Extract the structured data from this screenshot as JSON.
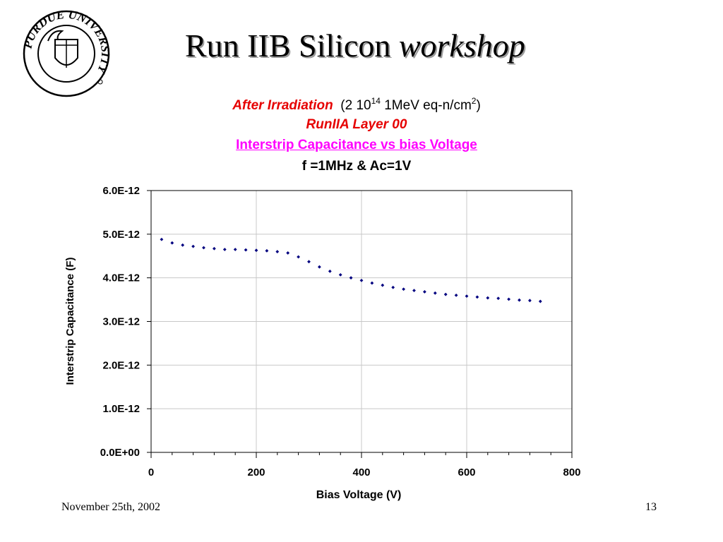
{
  "slide": {
    "title_main": "Run IIB Silicon",
    "title_italic": "workshop",
    "logo_text": "PURDUE UNIVERSITY",
    "footer_date": "November 25th, 2002",
    "page_number": "13"
  },
  "chart_data": {
    "type": "scatter",
    "header": {
      "line1_italic": "After Irradiation",
      "line1_prefix": "(2 10",
      "line1_exp": "14",
      "line1_mid": " 1MeV eq-n/cm",
      "line1_exp2": "2",
      "line1_suffix": ")",
      "line2": "RunIIA Layer 00",
      "line3": "Interstrip Capacitance vs bias Voltage ",
      "line4": "f =1MHz  & Ac=1V"
    },
    "xlabel": "Bias Voltage (V)",
    "ylabel": "Interstrip Capacitance (F)",
    "xlim": [
      0,
      800
    ],
    "ylim": [
      0,
      6e-12
    ],
    "x_ticks": [
      0,
      200,
      400,
      600,
      800
    ],
    "x_tick_labels": [
      "0",
      "200",
      "400",
      "600",
      "800"
    ],
    "y_ticks": [
      0,
      1e-12,
      2e-12,
      3e-12,
      4e-12,
      5e-12,
      6e-12
    ],
    "y_tick_labels": [
      "0.0E+00",
      "1.0E-12",
      "2.0E-12",
      "3.0E-12",
      "4.0E-12",
      "5.0E-12",
      "6.0E-12"
    ],
    "grid": true,
    "marker_color": "#00007f",
    "series": [
      {
        "x": [
          20,
          40,
          60,
          80,
          100,
          120,
          140,
          160,
          180,
          200,
          220,
          240,
          260,
          280,
          300,
          320,
          340,
          360,
          380,
          400,
          420,
          440,
          460,
          480,
          500,
          520,
          540,
          560,
          580,
          600,
          620,
          640,
          660,
          680,
          700,
          720,
          740
        ],
        "y": [
          4.88e-12,
          4.8e-12,
          4.75e-12,
          4.72e-12,
          4.69e-12,
          4.67e-12,
          4.65e-12,
          4.65e-12,
          4.64e-12,
          4.63e-12,
          4.62e-12,
          4.6e-12,
          4.57e-12,
          4.48e-12,
          4.37e-12,
          4.25e-12,
          4.15e-12,
          4.07e-12,
          4e-12,
          3.94e-12,
          3.88e-12,
          3.83e-12,
          3.78e-12,
          3.74e-12,
          3.71e-12,
          3.68e-12,
          3.65e-12,
          3.62e-12,
          3.6e-12,
          3.58e-12,
          3.56e-12,
          3.54e-12,
          3.53e-12,
          3.51e-12,
          3.49e-12,
          3.48e-12,
          3.46e-12
        ]
      }
    ]
  }
}
